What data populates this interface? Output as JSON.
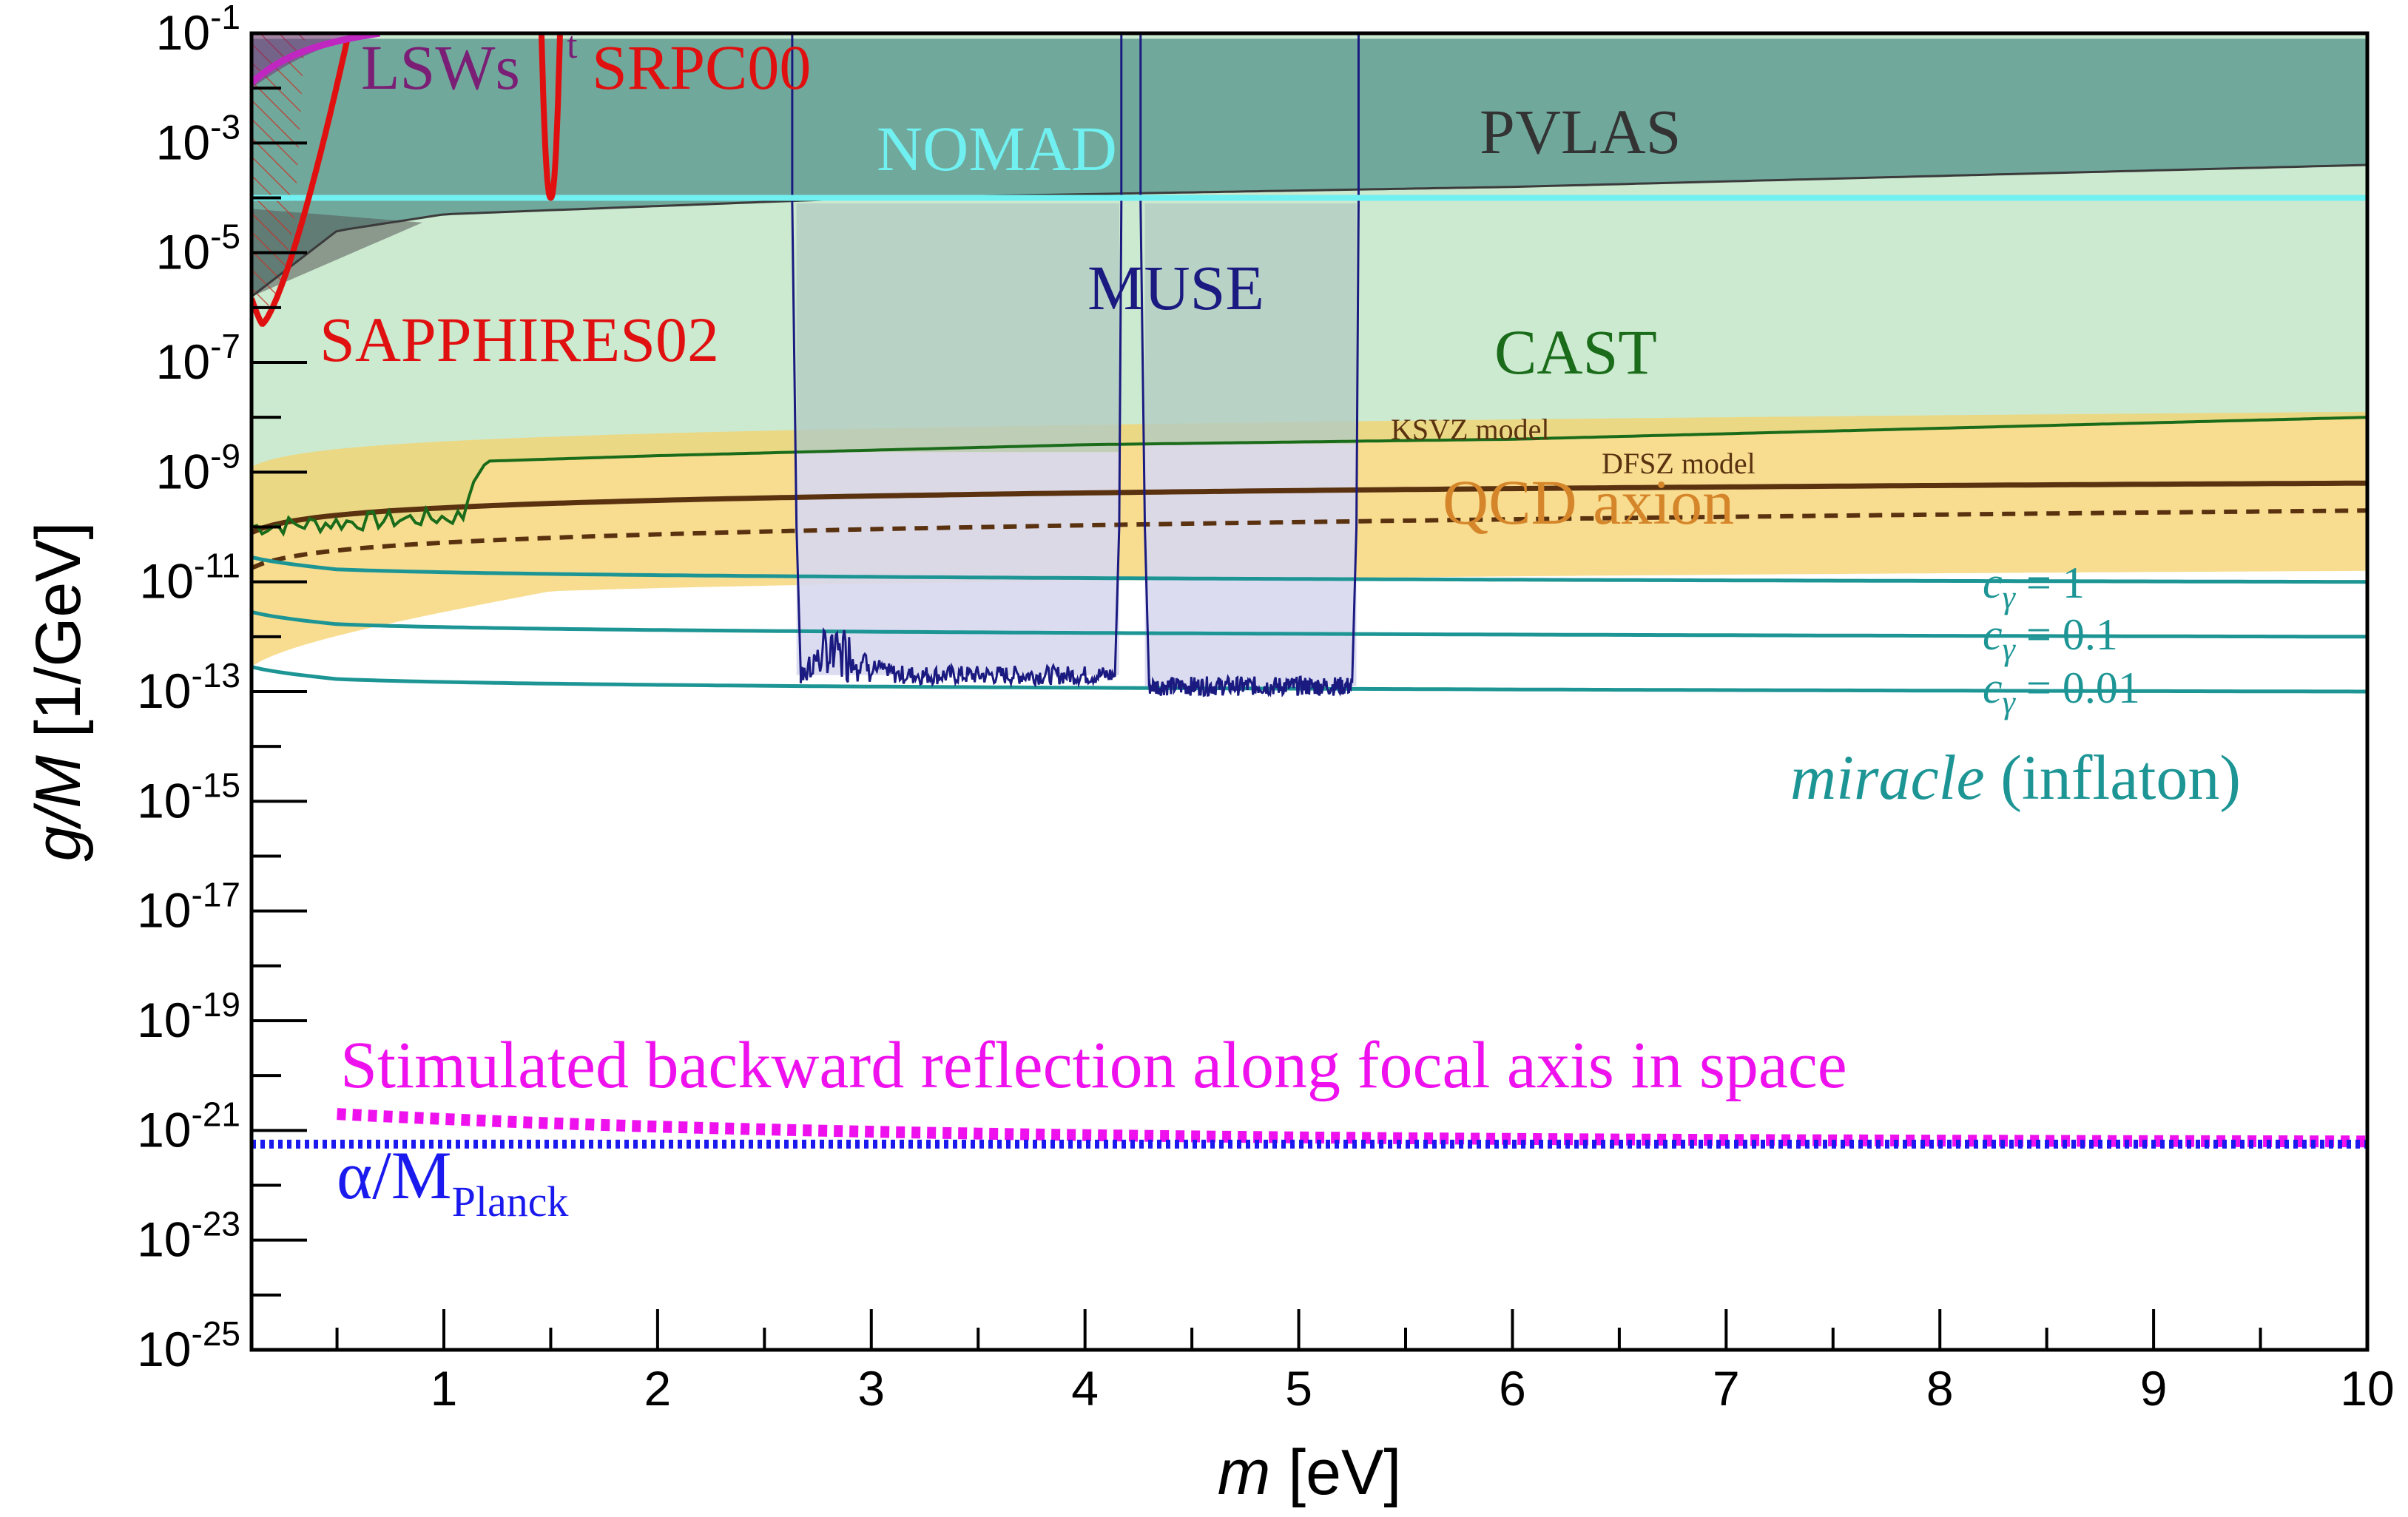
{
  "chart_data": {
    "type": "area",
    "xlabel": {
      "italic": "m",
      "rest": " [eV]"
    },
    "ylabel": {
      "italic": "g/M",
      "rest": " [1/GeV]"
    },
    "xlim": [
      0.1,
      10
    ],
    "ylim_log10": [
      -25,
      -1
    ],
    "x_ticks": [
      {
        "v": 1,
        "label": "1"
      },
      {
        "v": 2,
        "label": "2"
      },
      {
        "v": 3,
        "label": "3"
      },
      {
        "v": 4,
        "label": "4"
      },
      {
        "v": 5,
        "label": "5"
      },
      {
        "v": 6,
        "label": "6"
      },
      {
        "v": 7,
        "label": "7"
      },
      {
        "v": 8,
        "label": "8"
      },
      {
        "v": 9,
        "label": "9"
      },
      {
        "v": 10,
        "label": "10"
      }
    ],
    "y_ticks": [
      {
        "exp": -1,
        "label": "-1"
      },
      {
        "exp": -3,
        "label": "-3"
      },
      {
        "exp": -5,
        "label": "-5"
      },
      {
        "exp": -7,
        "label": "-7"
      },
      {
        "exp": -9,
        "label": "-9"
      },
      {
        "exp": -11,
        "label": "-11"
      },
      {
        "exp": -13,
        "label": "-13"
      },
      {
        "exp": -15,
        "label": "-15"
      },
      {
        "exp": -17,
        "label": "-17"
      },
      {
        "exp": -19,
        "label": "-19"
      },
      {
        "exp": -21,
        "label": "-21"
      },
      {
        "exp": -23,
        "label": "-23"
      },
      {
        "exp": -25,
        "label": "-25"
      }
    ],
    "y_tick_base": "10",
    "regions": {
      "pvlas": {
        "label": "PVLAS",
        "color": "#5f9e93",
        "upper_log10": -1.1,
        "lower": [
          [
            0.1,
            -5.8
          ],
          [
            0.5,
            -4.6
          ],
          [
            1,
            -4.3
          ],
          [
            3,
            -4.0
          ],
          [
            6,
            -3.8
          ],
          [
            10,
            -3.4
          ]
        ]
      },
      "cast": {
        "label": "CAST",
        "color": "#ccead0",
        "line_color": "#1a6b1a",
        "lower": [
          [
            0.1,
            -10.0
          ],
          [
            1.1,
            -9.8
          ],
          [
            1.12,
            -9.3
          ],
          [
            1.2,
            -8.8
          ],
          [
            2,
            -8.7
          ],
          [
            4,
            -8.5
          ],
          [
            6,
            -8.4
          ],
          [
            8,
            -8.2
          ],
          [
            10,
            -8.0
          ]
        ]
      },
      "muse": {
        "label": "MUSE",
        "color": "#1a1a80",
        "fill": "#d8d8f0",
        "fill_upper": "#b3ccc3",
        "segments": [
          {
            "x0": 2.65,
            "x1": 4.16,
            "floor_log10": -12.7
          },
          {
            "x0": 4.28,
            "x1": 5.27,
            "floor_log10": -12.9
          }
        ]
      },
      "nomad": {
        "label": "NOMAD",
        "color": "#70f0f0",
        "level_log10": -4.0
      },
      "qcd": {
        "label": "QCD axion",
        "color": "#f5d26b",
        "text_color": "#d6862a"
      },
      "ksvz": {
        "label": "KSVZ model",
        "color": "#5a3210"
      },
      "dfsz": {
        "label": "DFSZ model",
        "color": "#5a3210"
      },
      "lsw": {
        "label": "LSWs",
        "color": "#7a1f75"
      },
      "srpc": {
        "label": "SRPC00",
        "prefix": "t",
        "color": "#e01010",
        "x_min": 1.5,
        "min_log10": -4.0
      },
      "sapphires": {
        "label": "SAPPHIRES02",
        "color": "#e01010",
        "x_min": 0.15,
        "min_log10": -6.3
      }
    },
    "miracle": {
      "title_italic": "miracle",
      "title_rest": " (inflaton)",
      "color": "#1d9595",
      "curves": [
        {
          "c_label": "c",
          "sub": "γ",
          "eq": " =  1",
          "at_10_log10": -11.0
        },
        {
          "c_label": "c",
          "sub": "γ",
          "eq": " =  0.1",
          "at_10_log10": -12.0
        },
        {
          "c_label": "c",
          "sub": "γ",
          "eq": " = 0.01",
          "at_10_log10": -13.0
        }
      ]
    },
    "stimulated": {
      "label": "Stimulated backward reflection along focal axis in space",
      "color": "#ee11ee",
      "start_log10": -20.7,
      "end_log10": -21.2
    },
    "planck": {
      "label": "α/M",
      "sub": "Planck",
      "color": "#1a1aee",
      "level_log10": -21.25
    }
  }
}
